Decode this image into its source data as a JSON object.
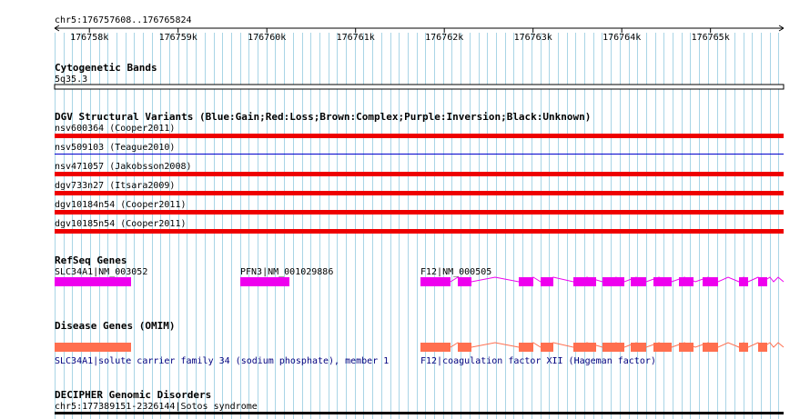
{
  "colors": {
    "grid": "#a9d5e6",
    "gain": "#0000cc",
    "loss": "#ee0000",
    "refseq": "#ee00ee",
    "omim": "#ff6f4f",
    "omim_label": "#00007f",
    "decipher": "#000000"
  },
  "ruler": {
    "coords": "chr5:176757608..176765824",
    "start": 176757608,
    "end": 176765824,
    "ticks": [
      {
        "pos": 176758000,
        "label": "176758k"
      },
      {
        "pos": 176759000,
        "label": "176759k"
      },
      {
        "pos": 176760000,
        "label": "176760k"
      },
      {
        "pos": 176761000,
        "label": "176761k"
      },
      {
        "pos": 176762000,
        "label": "176762k"
      },
      {
        "pos": 176763000,
        "label": "176763k"
      },
      {
        "pos": 176764000,
        "label": "176764k"
      },
      {
        "pos": 176765000,
        "label": "176765k"
      }
    ]
  },
  "cytoband": {
    "title": "Cytogenetic Bands",
    "band": "5q35.3"
  },
  "dgv": {
    "title": "DGV Structural Variants (Blue:Gain;Red:Loss;Brown:Complex;Purple:Inversion;Black:Unknown)",
    "variants": [
      {
        "label": "nsv600364 (Cooper2011)",
        "type": "loss"
      },
      {
        "label": "nsv509103 (Teague2010)",
        "type": "gain"
      },
      {
        "label": "nsv471057 (Jakobsson2008)",
        "type": "loss"
      },
      {
        "label": "dgv733n27 (Itsara2009)",
        "type": "loss"
      },
      {
        "label": "dgv10184n54 (Cooper2011)",
        "type": "loss"
      },
      {
        "label": "dgv10185n54 (Cooper2011)",
        "type": "loss"
      }
    ]
  },
  "refseq": {
    "title": "RefSeq Genes",
    "genes": [
      {
        "label": "SLC34A1|NM_003052"
      },
      {
        "label": "PFN3|NM_001029886"
      },
      {
        "label": "F12|NM_000505"
      }
    ]
  },
  "omim": {
    "title": "Disease Genes (OMIM)",
    "genes": [
      {
        "label": "SLC34A1|solute carrier family 34 (sodium phosphate), member 1"
      },
      {
        "label": "F12|coagulation factor XII (Hageman factor)"
      }
    ]
  },
  "decipher": {
    "title": "DECIPHER Genomic Disorders",
    "entry": "chr5:177389151-2326144|Sotos syndrome"
  }
}
